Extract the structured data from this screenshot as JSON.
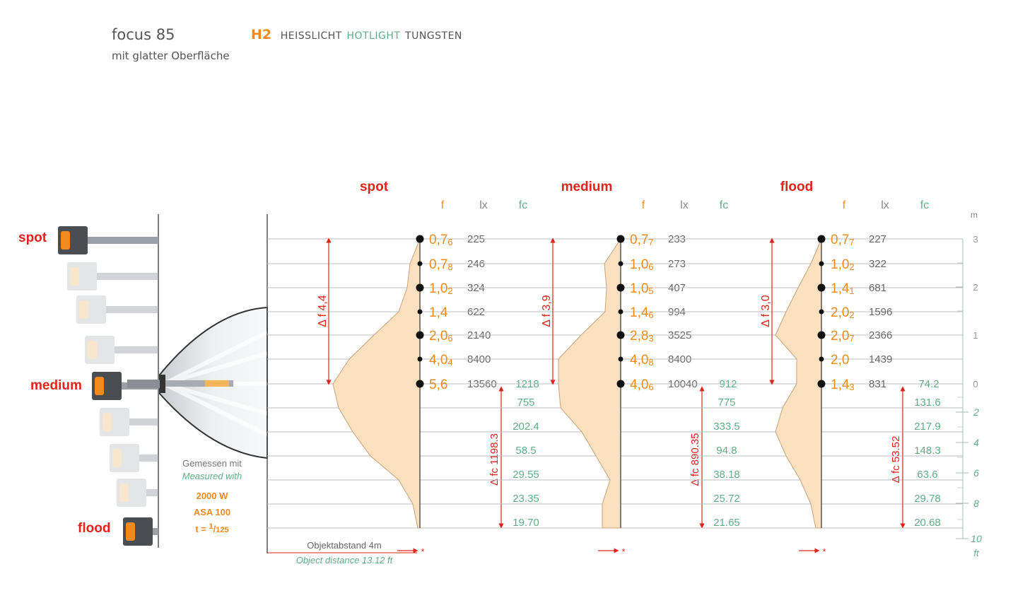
{
  "header": {
    "product": "focus 85",
    "surface": "mit glatter Oberfläche",
    "code": "H2",
    "tag_de": "HEISSLICHT",
    "tag_en": "HOTLIGHT",
    "tag_tungsten": "TUNGSTEN"
  },
  "lamp_labels": {
    "spot": "spot",
    "medium": "medium",
    "flood": "flood"
  },
  "measurement": {
    "measured_de": "Gemessen mit",
    "measured_en": "Measured with",
    "watt": "2000 W",
    "asa": "ASA 100",
    "time_prefix": "t = ",
    "time_num": "1",
    "time_den": "125"
  },
  "object_distance": {
    "de": "Objektabstand 4m",
    "en": "Object distance 13.12 ft"
  },
  "column_headers": {
    "f": "f",
    "lx": "lx",
    "fc": "fc"
  },
  "axis": {
    "m_unit": "m",
    "m_ticks": [
      "3",
      "2",
      "1",
      "0"
    ],
    "ft_unit": "ft",
    "ft_ticks": [
      "2",
      "4",
      "6",
      "8",
      "10"
    ]
  },
  "colors": {
    "orange": "#f08a1c",
    "red": "#e2231a",
    "green": "#5fae86",
    "gray": "#666666",
    "fill": "#fbe0bf"
  },
  "panels": [
    {
      "title": "spot",
      "delta_f": "Δ f 4,4",
      "delta_fc": "Δ fc 1198.3",
      "f": [
        [
          "0,7",
          "6"
        ],
        [
          "0,7",
          "8"
        ],
        [
          "1,0",
          "2"
        ],
        [
          "1,4",
          ""
        ],
        [
          "2,0",
          "6"
        ],
        [
          "4,0",
          "4"
        ],
        [
          "5,6",
          ""
        ]
      ],
      "lx": [
        "225",
        "246",
        "324",
        "622",
        "2140",
        "8400",
        "13560"
      ],
      "fc_center": "1218",
      "fc_below": [
        "755",
        "202.4",
        "58.5",
        "29.55",
        "23.35",
        "19.70"
      ]
    },
    {
      "title": "medium",
      "delta_f": "Δ f 3,9",
      "delta_fc": "Δ fc 890.35",
      "f": [
        [
          "0,7",
          "7"
        ],
        [
          "1,0",
          "6"
        ],
        [
          "1,0",
          "5"
        ],
        [
          "1,4",
          "6"
        ],
        [
          "2,8",
          "3"
        ],
        [
          "4,0",
          "8"
        ],
        [
          "4,0",
          "6"
        ]
      ],
      "lx": [
        "233",
        "273",
        "407",
        "994",
        "3525",
        "8400",
        "10040"
      ],
      "fc_center": "912",
      "fc_below": [
        "775",
        "333.5",
        "94.8",
        "38.18",
        "25.72",
        "21.65"
      ]
    },
    {
      "title": "flood",
      "delta_f": "Δ f 3,0",
      "delta_fc": "Δ fc 53.52",
      "f": [
        [
          "0,7",
          "7"
        ],
        [
          "1,0",
          "2"
        ],
        [
          "1,4",
          "1"
        ],
        [
          "2,0",
          "2"
        ],
        [
          "2,0",
          "7"
        ],
        [
          "2,0",
          ""
        ],
        [
          "1,4",
          "3"
        ]
      ],
      "lx": [
        "227",
        "322",
        "681",
        "1596",
        "2366",
        "1439",
        "831"
      ],
      "fc_center": "74.2",
      "fc_below": [
        "131.6",
        "217.9",
        "148.3",
        "63.6",
        "29.78",
        "20.68"
      ]
    }
  ]
}
